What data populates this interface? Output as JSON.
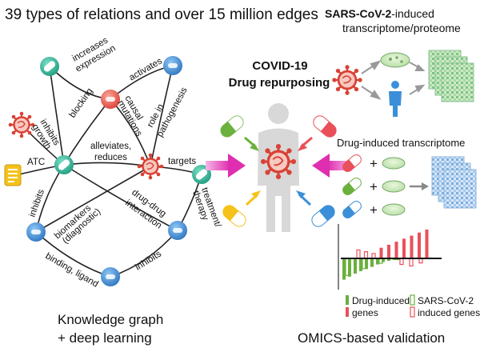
{
  "header": {
    "title": "39 types of relations and over 15 million edges",
    "sars_top_bold": "SARS-CoV-2",
    "sars_top_rest": "-induced",
    "sars_bottom": "transcriptome/proteome"
  },
  "center": {
    "title_line1": "COVID-19",
    "title_line2": "Drug repurposing"
  },
  "graph": {
    "edges": [
      "increases",
      "expression",
      "activates",
      "blocking",
      "inhibits",
      "growth",
      "causal",
      "mutations",
      "role in",
      "pathogenesis",
      "alleviates,",
      "reduces",
      "targets",
      "ATC",
      "treatment/",
      "therapy",
      "inhibits",
      "biomarkers",
      "(diagnostic)",
      "drug-drug",
      "interaction",
      "binding, ligand",
      "inhibits"
    ],
    "caption_line1": "Knowledge graph",
    "caption_line2": "+ deep learning"
  },
  "omics": {
    "drug_title": "Drug-induced transcriptome",
    "plus": "+",
    "legend_drug_line1": "Drug-induced",
    "legend_drug_line2": "genes",
    "legend_sars_line1": "SARS-CoV-2",
    "legend_sars_line2": "induced genes",
    "caption": "OMICS-based validation",
    "bars_green": [
      -0.7,
      -0.6,
      -0.5,
      -0.42,
      -0.35,
      -0.28,
      -0.2,
      -0.12,
      -0.08,
      -0.05
    ],
    "bars_red_up": [
      0.28,
      0.22,
      0.16,
      0.35,
      0.45,
      0.55,
      0.65,
      0.75,
      0.85,
      0.95
    ],
    "bars_red_down": [
      -0.2,
      -0.25,
      -0.15
    ],
    "colors": {
      "green": "#6ab13d",
      "red": "#e9505a",
      "blue": "#3b8fd8",
      "yellow": "#f5c21b",
      "magenta": "#e536b4",
      "teal": "#32b59a"
    }
  }
}
